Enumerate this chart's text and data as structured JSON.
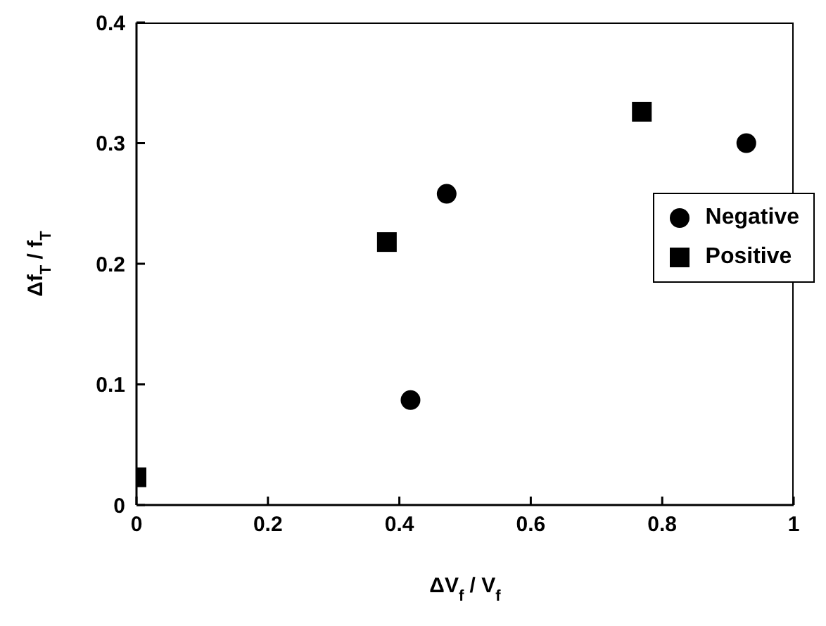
{
  "chart_data": {
    "type": "scatter",
    "xlabel": "ΔV$_{f}$ / V$_{f}$",
    "ylabel": "Δf$_{T}$ / f$_{T}$",
    "xlim": [
      0,
      1
    ],
    "xticks": [
      0,
      0.2,
      0.4,
      0.6,
      0.8,
      1
    ],
    "ylim": [
      0,
      0.4
    ],
    "yticks": [
      0,
      0.1,
      0.2,
      0.3,
      0.4
    ],
    "grid": false,
    "legend": "right",
    "series": [
      {
        "name": "Negative",
        "color": "#000000",
        "marker": "circle",
        "x": [
          0.417,
          0.472,
          0.928
        ],
        "values": [
          0.087,
          0.258,
          0.3
        ]
      },
      {
        "name": "Positive",
        "color": "#000000",
        "marker": "square",
        "x": [
          0,
          0.381,
          0.769
        ],
        "values": [
          0.023,
          0.218,
          0.326
        ]
      }
    ]
  }
}
